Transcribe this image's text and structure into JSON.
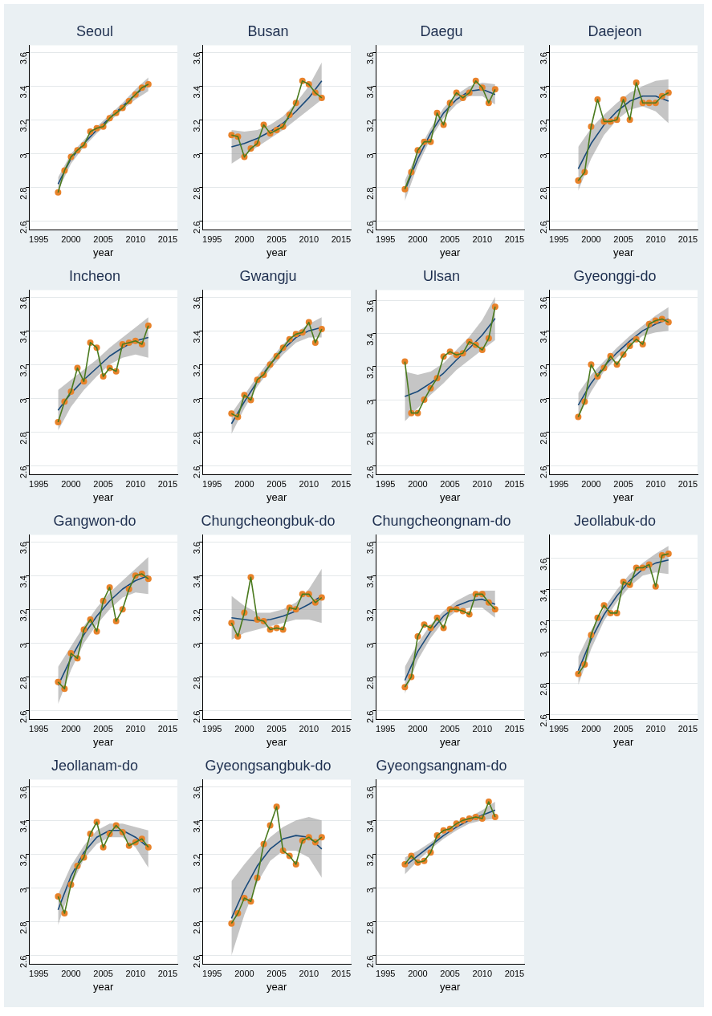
{
  "chart_data": [
    {
      "type": "scatter",
      "title": "Seoul",
      "xlabel": "year",
      "x": [
        1998,
        1999,
        2000,
        2001,
        2002,
        2003,
        2004,
        2005,
        2006,
        2007,
        2008,
        2009,
        2010,
        2011,
        2012
      ],
      "xlim": [
        1993.5,
        2016.5
      ],
      "xticks": [
        1995,
        2000,
        2005,
        2010,
        2015
      ],
      "ylim": [
        2.55,
        3.64
      ],
      "yticks": [
        2.6,
        2.8,
        3,
        3.2,
        3.4,
        3.6
      ],
      "grid": "y",
      "series": [
        {
          "type": "line",
          "color": "#4a7a1e",
          "marker": "none",
          "values": [
            2.77,
            2.9,
            2.98,
            3.02,
            3.05,
            3.13,
            3.15,
            3.16,
            3.21,
            3.24,
            3.27,
            3.31,
            3.35,
            3.39,
            3.41
          ]
        },
        {
          "type": "scatter",
          "color": "#e8822a",
          "marker": "circle",
          "values": [
            2.77,
            2.9,
            2.98,
            3.02,
            3.05,
            3.13,
            3.15,
            3.16,
            3.21,
            3.24,
            3.27,
            3.31,
            3.35,
            3.39,
            3.41
          ]
        },
        {
          "type": "line",
          "color": "#1a4a7a",
          "marker": "none",
          "x": [
            1998,
            2000,
            2002,
            2004,
            2006,
            2008,
            2010,
            2012
          ],
          "values": [
            2.82,
            2.97,
            3.06,
            3.14,
            3.21,
            3.28,
            3.35,
            3.41
          ],
          "lower": [
            2.78,
            2.94,
            3.04,
            3.12,
            3.19,
            3.26,
            3.32,
            3.37
          ],
          "upper": [
            2.86,
            3.0,
            3.08,
            3.16,
            3.23,
            3.3,
            3.38,
            3.45
          ]
        }
      ]
    },
    {
      "type": "scatter",
      "title": "Busan",
      "xlabel": "year",
      "x": [
        1998,
        1999,
        2000,
        2001,
        2002,
        2003,
        2004,
        2005,
        2006,
        2007,
        2008,
        2009,
        2010,
        2011,
        2012
      ],
      "xlim": [
        1993.5,
        2016.5
      ],
      "xticks": [
        1995,
        2000,
        2005,
        2010,
        2015
      ],
      "ylim": [
        2.55,
        3.64
      ],
      "yticks": [
        2.6,
        2.8,
        3,
        3.2,
        3.4,
        3.6
      ],
      "grid": "y",
      "series": [
        {
          "type": "line",
          "color": "#4a7a1e",
          "marker": "none",
          "values": [
            3.11,
            3.1,
            2.98,
            3.03,
            3.06,
            3.17,
            3.12,
            3.14,
            3.16,
            3.23,
            3.3,
            3.43,
            3.41,
            3.36,
            3.33
          ]
        },
        {
          "type": "scatter",
          "color": "#e8822a",
          "marker": "circle",
          "values": [
            3.11,
            3.1,
            2.98,
            3.03,
            3.06,
            3.17,
            3.12,
            3.14,
            3.16,
            3.23,
            3.3,
            3.43,
            3.41,
            3.36,
            3.33
          ]
        },
        {
          "type": "line",
          "color": "#1a4a7a",
          "marker": "none",
          "x": [
            1998,
            2000,
            2002,
            2004,
            2006,
            2008,
            2010,
            2012
          ],
          "values": [
            3.04,
            3.06,
            3.09,
            3.13,
            3.18,
            3.25,
            3.33,
            3.43
          ],
          "lower": [
            2.94,
            2.99,
            3.04,
            3.09,
            3.14,
            3.2,
            3.26,
            3.32
          ],
          "upper": [
            3.14,
            3.13,
            3.14,
            3.17,
            3.22,
            3.3,
            3.4,
            3.54
          ]
        }
      ]
    },
    {
      "type": "scatter",
      "title": "Daegu",
      "xlabel": "year",
      "x": [
        1998,
        1999,
        2000,
        2001,
        2002,
        2003,
        2004,
        2005,
        2006,
        2007,
        2008,
        2009,
        2010,
        2011,
        2012
      ],
      "xlim": [
        1993.5,
        2016.5
      ],
      "xticks": [
        1995,
        2000,
        2005,
        2010,
        2015
      ],
      "ylim": [
        2.55,
        3.64
      ],
      "yticks": [
        2.6,
        2.8,
        3,
        3.2,
        3.4,
        3.6
      ],
      "grid": "y",
      "series": [
        {
          "type": "line",
          "color": "#4a7a1e",
          "marker": "none",
          "values": [
            2.79,
            2.89,
            3.02,
            3.07,
            3.07,
            3.24,
            3.17,
            3.3,
            3.36,
            3.33,
            3.36,
            3.43,
            3.39,
            3.3,
            3.38
          ]
        },
        {
          "type": "scatter",
          "color": "#e8822a",
          "marker": "circle",
          "values": [
            2.79,
            2.89,
            3.02,
            3.07,
            3.07,
            3.24,
            3.17,
            3.3,
            3.36,
            3.33,
            3.36,
            3.43,
            3.39,
            3.3,
            3.38
          ]
        },
        {
          "type": "line",
          "color": "#1a4a7a",
          "marker": "none",
          "x": [
            1998,
            2000,
            2002,
            2004,
            2006,
            2008,
            2010,
            2012
          ],
          "values": [
            2.78,
            2.97,
            3.12,
            3.24,
            3.32,
            3.37,
            3.38,
            3.35
          ],
          "lower": [
            2.72,
            2.93,
            3.09,
            3.21,
            3.29,
            3.34,
            3.34,
            3.29
          ],
          "upper": [
            2.84,
            3.01,
            3.15,
            3.27,
            3.35,
            3.4,
            3.42,
            3.41
          ]
        }
      ]
    },
    {
      "type": "scatter",
      "title": "Daejeon",
      "xlabel": "year",
      "x": [
        1998,
        1999,
        2000,
        2001,
        2002,
        2003,
        2004,
        2005,
        2006,
        2007,
        2008,
        2009,
        2010,
        2011,
        2012
      ],
      "xlim": [
        1993.5,
        2016.5
      ],
      "xticks": [
        1995,
        2000,
        2005,
        2010,
        2015
      ],
      "ylim": [
        2.55,
        3.64
      ],
      "yticks": [
        2.6,
        2.8,
        3,
        3.2,
        3.4,
        3.6
      ],
      "grid": "y",
      "series": [
        {
          "type": "line",
          "color": "#4a7a1e",
          "marker": "none",
          "values": [
            2.84,
            2.89,
            3.16,
            3.32,
            3.19,
            3.19,
            3.2,
            3.32,
            3.2,
            3.42,
            3.3,
            3.3,
            3.3,
            3.34,
            3.36
          ]
        },
        {
          "type": "scatter",
          "color": "#e8822a",
          "marker": "circle",
          "values": [
            2.84,
            2.89,
            3.16,
            3.32,
            3.19,
            3.19,
            3.2,
            3.32,
            3.2,
            3.42,
            3.3,
            3.3,
            3.3,
            3.34,
            3.36
          ]
        },
        {
          "type": "line",
          "color": "#1a4a7a",
          "marker": "none",
          "x": [
            1998,
            2000,
            2002,
            2004,
            2006,
            2008,
            2010,
            2012
          ],
          "values": [
            2.91,
            3.06,
            3.17,
            3.25,
            3.31,
            3.34,
            3.34,
            3.31
          ],
          "lower": [
            2.78,
            2.97,
            3.11,
            3.2,
            3.26,
            3.28,
            3.25,
            3.18
          ],
          "upper": [
            3.04,
            3.15,
            3.23,
            3.3,
            3.36,
            3.4,
            3.43,
            3.44
          ]
        }
      ]
    },
    {
      "type": "scatter",
      "title": "Incheon",
      "xlabel": "year",
      "x": [
        1998,
        1999,
        2000,
        2001,
        2002,
        2003,
        2004,
        2005,
        2006,
        2007,
        2008,
        2009,
        2010,
        2011,
        2012
      ],
      "xlim": [
        1993.5,
        2016.5
      ],
      "xticks": [
        1995,
        2000,
        2005,
        2010,
        2015
      ],
      "ylim": [
        2.55,
        3.64
      ],
      "yticks": [
        2.6,
        2.8,
        3,
        3.2,
        3.4,
        3.6
      ],
      "grid": "y",
      "series": [
        {
          "type": "line",
          "color": "#4a7a1e",
          "marker": "none",
          "values": [
            2.86,
            2.98,
            3.04,
            3.18,
            3.1,
            3.33,
            3.3,
            3.13,
            3.18,
            3.16,
            3.32,
            3.33,
            3.34,
            3.32,
            3.43
          ]
        },
        {
          "type": "scatter",
          "color": "#e8822a",
          "marker": "circle",
          "values": [
            2.86,
            2.98,
            3.04,
            3.18,
            3.1,
            3.33,
            3.3,
            3.13,
            3.18,
            3.16,
            3.32,
            3.33,
            3.34,
            3.32,
            3.43
          ]
        },
        {
          "type": "line",
          "color": "#1a4a7a",
          "marker": "none",
          "x": [
            1998,
            2000,
            2002,
            2004,
            2006,
            2008,
            2010,
            2012
          ],
          "values": [
            2.93,
            3.03,
            3.11,
            3.18,
            3.25,
            3.3,
            3.34,
            3.36
          ],
          "lower": [
            2.81,
            2.95,
            3.05,
            3.13,
            3.2,
            3.24,
            3.26,
            3.24
          ],
          "upper": [
            3.05,
            3.11,
            3.17,
            3.23,
            3.3,
            3.36,
            3.42,
            3.48
          ]
        }
      ]
    },
    {
      "type": "scatter",
      "title": "Gwangju",
      "xlabel": "year",
      "x": [
        1998,
        1999,
        2000,
        2001,
        2002,
        2003,
        2004,
        2005,
        2006,
        2007,
        2008,
        2009,
        2010,
        2011,
        2012
      ],
      "xlim": [
        1993.5,
        2016.5
      ],
      "xticks": [
        1995,
        2000,
        2005,
        2010,
        2015
      ],
      "ylim": [
        2.55,
        3.64
      ],
      "yticks": [
        2.6,
        2.8,
        3,
        3.2,
        3.4,
        3.6
      ],
      "grid": "y",
      "series": [
        {
          "type": "line",
          "color": "#4a7a1e",
          "marker": "none",
          "values": [
            2.91,
            2.89,
            3.02,
            2.99,
            3.11,
            3.14,
            3.2,
            3.25,
            3.3,
            3.35,
            3.38,
            3.39,
            3.45,
            3.33,
            3.41
          ]
        },
        {
          "type": "scatter",
          "color": "#e8822a",
          "marker": "circle",
          "values": [
            2.91,
            2.89,
            3.02,
            2.99,
            3.11,
            3.14,
            3.2,
            3.25,
            3.3,
            3.35,
            3.38,
            3.39,
            3.45,
            3.33,
            3.41
          ]
        },
        {
          "type": "line",
          "color": "#1a4a7a",
          "marker": "none",
          "x": [
            1998,
            2000,
            2002,
            2004,
            2006,
            2008,
            2010,
            2012
          ],
          "values": [
            2.85,
            2.98,
            3.1,
            3.2,
            3.29,
            3.36,
            3.4,
            3.42
          ],
          "lower": [
            2.79,
            2.94,
            3.07,
            3.17,
            3.26,
            3.33,
            3.36,
            3.36
          ],
          "upper": [
            2.91,
            3.02,
            3.13,
            3.23,
            3.32,
            3.39,
            3.44,
            3.48
          ]
        }
      ]
    },
    {
      "type": "scatter",
      "title": "Ulsan",
      "xlabel": "year",
      "x": [
        1998,
        1999,
        2000,
        2001,
        2002,
        2003,
        2004,
        2005,
        2006,
        2007,
        2008,
        2009,
        2010,
        2011,
        2012
      ],
      "xlim": [
        1993.5,
        2016.5
      ],
      "xticks": [
        1995,
        2000,
        2005,
        2010,
        2015
      ],
      "ylim": [
        2.55,
        3.66
      ],
      "yticks": [
        2.6,
        2.8,
        3,
        3.2,
        3.4,
        3.6
      ],
      "grid": "y",
      "series": [
        {
          "type": "line",
          "color": "#4a7a1e",
          "marker": "none",
          "values": [
            3.23,
            2.92,
            2.92,
            3.0,
            3.07,
            3.13,
            3.26,
            3.29,
            3.27,
            3.28,
            3.35,
            3.33,
            3.3,
            3.37,
            3.56
          ]
        },
        {
          "type": "scatter",
          "color": "#e8822a",
          "marker": "circle",
          "values": [
            3.23,
            2.92,
            2.92,
            3.0,
            3.07,
            3.13,
            3.26,
            3.29,
            3.27,
            3.28,
            3.35,
            3.33,
            3.3,
            3.37,
            3.56
          ]
        },
        {
          "type": "line",
          "color": "#1a4a7a",
          "marker": "none",
          "x": [
            1998,
            2000,
            2002,
            2004,
            2006,
            2008,
            2010,
            2012
          ],
          "values": [
            3.02,
            3.05,
            3.1,
            3.16,
            3.24,
            3.31,
            3.39,
            3.49
          ],
          "lower": [
            2.87,
            2.95,
            3.03,
            3.1,
            3.18,
            3.24,
            3.3,
            3.36
          ],
          "upper": [
            3.17,
            3.15,
            3.17,
            3.22,
            3.3,
            3.38,
            3.48,
            3.62
          ]
        }
      ]
    },
    {
      "type": "scatter",
      "title": "Gyeonggi-do",
      "xlabel": "year",
      "x": [
        1998,
        1999,
        2000,
        2001,
        2002,
        2003,
        2004,
        2005,
        2006,
        2007,
        2008,
        2009,
        2010,
        2011,
        2012
      ],
      "xlim": [
        1993.5,
        2016.5
      ],
      "xticks": [
        1995,
        2000,
        2005,
        2010,
        2015
      ],
      "ylim": [
        2.55,
        3.64
      ],
      "yticks": [
        2.6,
        2.8,
        3,
        3.2,
        3.4,
        3.6
      ],
      "grid": "y",
      "series": [
        {
          "type": "line",
          "color": "#4a7a1e",
          "marker": "none",
          "values": [
            2.89,
            2.98,
            3.2,
            3.13,
            3.18,
            3.25,
            3.2,
            3.26,
            3.31,
            3.35,
            3.32,
            3.44,
            3.46,
            3.47,
            3.45
          ]
        },
        {
          "type": "scatter",
          "color": "#e8822a",
          "marker": "circle",
          "values": [
            2.89,
            2.98,
            3.2,
            3.13,
            3.18,
            3.25,
            3.2,
            3.26,
            3.31,
            3.35,
            3.32,
            3.44,
            3.46,
            3.47,
            3.45
          ]
        },
        {
          "type": "line",
          "color": "#1a4a7a",
          "marker": "none",
          "x": [
            1998,
            2000,
            2002,
            2004,
            2006,
            2008,
            2010,
            2012
          ],
          "values": [
            2.96,
            3.09,
            3.19,
            3.27,
            3.34,
            3.4,
            3.44,
            3.47
          ],
          "lower": [
            2.89,
            3.04,
            3.16,
            3.24,
            3.31,
            3.37,
            3.39,
            3.4
          ],
          "upper": [
            3.03,
            3.14,
            3.22,
            3.3,
            3.37,
            3.43,
            3.49,
            3.54
          ]
        }
      ]
    },
    {
      "type": "scatter",
      "title": "Gangwon-do",
      "xlabel": "year",
      "x": [
        1998,
        1999,
        2000,
        2001,
        2002,
        2003,
        2004,
        2005,
        2006,
        2007,
        2008,
        2009,
        2010,
        2011,
        2012
      ],
      "xlim": [
        1993.5,
        2016.5
      ],
      "xticks": [
        1995,
        2000,
        2005,
        2010,
        2015
      ],
      "ylim": [
        2.55,
        3.64
      ],
      "yticks": [
        2.6,
        2.8,
        3,
        3.2,
        3.4,
        3.6
      ],
      "grid": "y",
      "series": [
        {
          "type": "line",
          "color": "#4a7a1e",
          "marker": "none",
          "values": [
            2.77,
            2.73,
            2.94,
            2.91,
            3.08,
            3.14,
            3.07,
            3.25,
            3.33,
            3.13,
            3.2,
            3.32,
            3.4,
            3.41,
            3.38
          ]
        },
        {
          "type": "scatter",
          "color": "#e8822a",
          "marker": "circle",
          "values": [
            2.77,
            2.73,
            2.94,
            2.91,
            3.08,
            3.14,
            3.07,
            3.25,
            3.33,
            3.13,
            3.2,
            3.32,
            3.4,
            3.41,
            3.38
          ]
        },
        {
          "type": "line",
          "color": "#1a4a7a",
          "marker": "none",
          "x": [
            1998,
            2000,
            2002,
            2004,
            2006,
            2008,
            2010,
            2012
          ],
          "values": [
            2.75,
            2.91,
            3.05,
            3.16,
            3.25,
            3.32,
            3.37,
            3.4
          ],
          "lower": [
            2.64,
            2.84,
            3.0,
            3.11,
            3.2,
            3.27,
            3.3,
            3.29
          ],
          "upper": [
            2.86,
            2.98,
            3.1,
            3.21,
            3.3,
            3.37,
            3.44,
            3.51
          ]
        }
      ]
    },
    {
      "type": "scatter",
      "title": "Chungcheongbuk-do",
      "xlabel": "year",
      "x": [
        1998,
        1999,
        2000,
        2001,
        2002,
        2003,
        2004,
        2005,
        2006,
        2007,
        2008,
        2009,
        2010,
        2011,
        2012
      ],
      "xlim": [
        1993.5,
        2016.5
      ],
      "xticks": [
        1995,
        2000,
        2005,
        2010,
        2015
      ],
      "ylim": [
        2.55,
        3.64
      ],
      "yticks": [
        2.6,
        2.8,
        3,
        3.2,
        3.4,
        3.6
      ],
      "grid": "y",
      "series": [
        {
          "type": "line",
          "color": "#4a7a1e",
          "marker": "none",
          "values": [
            3.12,
            3.04,
            3.18,
            3.39,
            3.14,
            3.13,
            3.08,
            3.09,
            3.08,
            3.21,
            3.2,
            3.29,
            3.29,
            3.24,
            3.27
          ]
        },
        {
          "type": "scatter",
          "color": "#e8822a",
          "marker": "circle",
          "values": [
            3.12,
            3.04,
            3.18,
            3.39,
            3.14,
            3.13,
            3.08,
            3.09,
            3.08,
            3.21,
            3.2,
            3.29,
            3.29,
            3.24,
            3.27
          ]
        },
        {
          "type": "line",
          "color": "#1a4a7a",
          "marker": "none",
          "x": [
            1998,
            2000,
            2002,
            2004,
            2006,
            2008,
            2010,
            2012
          ],
          "values": [
            3.15,
            3.14,
            3.13,
            3.14,
            3.16,
            3.19,
            3.23,
            3.28
          ],
          "lower": [
            3.02,
            3.06,
            3.08,
            3.1,
            3.12,
            3.14,
            3.14,
            3.12
          ],
          "upper": [
            3.28,
            3.22,
            3.18,
            3.18,
            3.2,
            3.24,
            3.32,
            3.44
          ]
        }
      ]
    },
    {
      "type": "scatter",
      "title": "Chungcheongnam-do",
      "xlabel": "year",
      "x": [
        1998,
        1999,
        2000,
        2001,
        2002,
        2003,
        2004,
        2005,
        2006,
        2007,
        2008,
        2009,
        2010,
        2011,
        2012
      ],
      "xlim": [
        1993.5,
        2016.5
      ],
      "xticks": [
        1995,
        2000,
        2005,
        2010,
        2015
      ],
      "ylim": [
        2.55,
        3.64
      ],
      "yticks": [
        2.6,
        2.8,
        3,
        3.2,
        3.4,
        3.6
      ],
      "grid": "y",
      "series": [
        {
          "type": "line",
          "color": "#4a7a1e",
          "marker": "none",
          "values": [
            2.74,
            2.8,
            3.04,
            3.11,
            3.09,
            3.15,
            3.09,
            3.2,
            3.2,
            3.19,
            3.17,
            3.29,
            3.29,
            3.24,
            3.2
          ]
        },
        {
          "type": "scatter",
          "color": "#e8822a",
          "marker": "circle",
          "values": [
            2.74,
            2.8,
            3.04,
            3.11,
            3.09,
            3.15,
            3.09,
            3.2,
            3.2,
            3.19,
            3.17,
            3.29,
            3.29,
            3.24,
            3.2
          ]
        },
        {
          "type": "line",
          "color": "#1a4a7a",
          "marker": "none",
          "x": [
            1998,
            2000,
            2002,
            2004,
            2006,
            2008,
            2010,
            2012
          ],
          "values": [
            2.78,
            2.95,
            3.07,
            3.16,
            3.22,
            3.25,
            3.26,
            3.23
          ],
          "lower": [
            2.7,
            2.9,
            3.03,
            3.13,
            3.19,
            3.21,
            3.21,
            3.15
          ],
          "upper": [
            2.86,
            3.0,
            3.11,
            3.19,
            3.25,
            3.29,
            3.31,
            3.31
          ]
        }
      ]
    },
    {
      "type": "scatter",
      "title": "Jeollabuk-do",
      "xlabel": "year",
      "x": [
        1998,
        1999,
        2000,
        2001,
        2002,
        2003,
        2004,
        2005,
        2006,
        2007,
        2008,
        2009,
        2010,
        2011,
        2012
      ],
      "xlim": [
        1993.5,
        2016.5
      ],
      "xticks": [
        1995,
        2000,
        2005,
        2010,
        2015
      ],
      "ylim": [
        2.57,
        3.75
      ],
      "yticks": [
        2.6,
        2.8,
        3,
        3.2,
        3.4,
        3.6
      ],
      "grid": "y",
      "series": [
        {
          "type": "line",
          "color": "#4a7a1e",
          "marker": "none",
          "values": [
            2.86,
            2.92,
            3.11,
            3.22,
            3.3,
            3.25,
            3.25,
            3.45,
            3.43,
            3.54,
            3.54,
            3.56,
            3.42,
            3.62,
            3.63
          ]
        },
        {
          "type": "scatter",
          "color": "#e8822a",
          "marker": "circle",
          "values": [
            2.86,
            2.92,
            3.11,
            3.22,
            3.3,
            3.25,
            3.25,
            3.45,
            3.43,
            3.54,
            3.54,
            3.56,
            3.42,
            3.62,
            3.63
          ]
        },
        {
          "type": "line",
          "color": "#1a4a7a",
          "marker": "none",
          "x": [
            1998,
            2000,
            2002,
            2004,
            2006,
            2008,
            2010,
            2012
          ],
          "values": [
            2.88,
            3.08,
            3.24,
            3.36,
            3.46,
            3.53,
            3.57,
            3.59
          ],
          "lower": [
            2.79,
            3.02,
            3.2,
            3.32,
            3.42,
            3.49,
            3.51,
            3.5
          ],
          "upper": [
            2.97,
            3.14,
            3.28,
            3.4,
            3.5,
            3.57,
            3.63,
            3.68
          ]
        }
      ]
    },
    {
      "type": "scatter",
      "title": "Jeollanam-do",
      "xlabel": "year",
      "x": [
        1998,
        1999,
        2000,
        2001,
        2002,
        2003,
        2004,
        2005,
        2006,
        2007,
        2008,
        2009,
        2010,
        2011,
        2012
      ],
      "xlim": [
        1993.5,
        2016.5
      ],
      "xticks": [
        1995,
        2000,
        2005,
        2010,
        2015
      ],
      "ylim": [
        2.55,
        3.64
      ],
      "yticks": [
        2.6,
        2.8,
        3,
        3.2,
        3.4,
        3.6
      ],
      "grid": "y",
      "series": [
        {
          "type": "line",
          "color": "#4a7a1e",
          "marker": "none",
          "values": [
            2.95,
            2.85,
            3.02,
            3.13,
            3.18,
            3.32,
            3.39,
            3.24,
            3.32,
            3.37,
            3.33,
            3.25,
            3.27,
            3.29,
            3.24
          ]
        },
        {
          "type": "scatter",
          "color": "#e8822a",
          "marker": "circle",
          "values": [
            2.95,
            2.85,
            3.02,
            3.13,
            3.18,
            3.32,
            3.39,
            3.24,
            3.32,
            3.37,
            3.33,
            3.25,
            3.27,
            3.29,
            3.24
          ]
        },
        {
          "type": "line",
          "color": "#1a4a7a",
          "marker": "none",
          "x": [
            1998,
            2000,
            2002,
            2004,
            2006,
            2008,
            2010,
            2012
          ],
          "values": [
            2.87,
            3.07,
            3.21,
            3.3,
            3.34,
            3.34,
            3.3,
            3.24
          ],
          "lower": [
            2.78,
            3.01,
            3.17,
            3.26,
            3.3,
            3.3,
            3.24,
            3.12
          ],
          "upper": [
            2.96,
            3.13,
            3.25,
            3.34,
            3.38,
            3.38,
            3.36,
            3.34
          ]
        }
      ]
    },
    {
      "type": "scatter",
      "title": "Gyeongsangbuk-do",
      "xlabel": "year",
      "x": [
        1998,
        1999,
        2000,
        2001,
        2002,
        2003,
        2004,
        2005,
        2006,
        2007,
        2008,
        2009,
        2010,
        2011,
        2012
      ],
      "xlim": [
        1993.5,
        2016.5
      ],
      "xticks": [
        1995,
        2000,
        2005,
        2010,
        2015
      ],
      "ylim": [
        2.55,
        3.64
      ],
      "yticks": [
        2.6,
        2.8,
        3,
        3.2,
        3.4,
        3.6
      ],
      "grid": "y",
      "series": [
        {
          "type": "line",
          "color": "#4a7a1e",
          "marker": "none",
          "values": [
            2.79,
            2.85,
            2.94,
            2.92,
            3.06,
            3.26,
            3.37,
            3.48,
            3.22,
            3.19,
            3.14,
            3.28,
            3.3,
            3.27,
            3.3
          ]
        },
        {
          "type": "scatter",
          "color": "#e8822a",
          "marker": "circle",
          "values": [
            2.79,
            2.85,
            2.94,
            2.92,
            3.06,
            3.26,
            3.37,
            3.48,
            3.22,
            3.19,
            3.14,
            3.28,
            3.3,
            3.27,
            3.3
          ]
        },
        {
          "type": "line",
          "color": "#1a4a7a",
          "marker": "none",
          "x": [
            1998,
            2000,
            2002,
            2004,
            2006,
            2008,
            2010,
            2012
          ],
          "values": [
            2.82,
            2.99,
            3.13,
            3.23,
            3.29,
            3.31,
            3.3,
            3.23
          ],
          "lower": [
            2.6,
            2.84,
            3.03,
            3.16,
            3.22,
            3.22,
            3.18,
            3.06
          ],
          "upper": [
            3.04,
            3.14,
            3.23,
            3.3,
            3.36,
            3.4,
            3.42,
            3.4
          ]
        }
      ]
    },
    {
      "type": "scatter",
      "title": "Gyeongsangnam-do",
      "xlabel": "year",
      "x": [
        1998,
        1999,
        2000,
        2001,
        2002,
        2003,
        2004,
        2005,
        2006,
        2007,
        2008,
        2009,
        2010,
        2011,
        2012
      ],
      "xlim": [
        1993.5,
        2016.5
      ],
      "xticks": [
        1995,
        2000,
        2005,
        2010,
        2015
      ],
      "ylim": [
        2.55,
        3.64
      ],
      "yticks": [
        2.6,
        2.8,
        3,
        3.2,
        3.4,
        3.6
      ],
      "grid": "y",
      "series": [
        {
          "type": "line",
          "color": "#4a7a1e",
          "marker": "none",
          "values": [
            3.14,
            3.19,
            3.15,
            3.16,
            3.21,
            3.31,
            3.34,
            3.35,
            3.38,
            3.4,
            3.41,
            3.42,
            3.41,
            3.51,
            3.42
          ]
        },
        {
          "type": "scatter",
          "color": "#e8822a",
          "marker": "circle",
          "values": [
            3.14,
            3.19,
            3.15,
            3.16,
            3.21,
            3.31,
            3.34,
            3.35,
            3.38,
            3.4,
            3.41,
            3.42,
            3.41,
            3.51,
            3.42
          ]
        },
        {
          "type": "line",
          "color": "#1a4a7a",
          "marker": "none",
          "x": [
            1998,
            2000,
            2002,
            2004,
            2006,
            2008,
            2010,
            2012
          ],
          "values": [
            3.13,
            3.19,
            3.25,
            3.31,
            3.36,
            3.4,
            3.43,
            3.46
          ],
          "lower": [
            3.08,
            3.16,
            3.23,
            3.29,
            3.34,
            3.38,
            3.4,
            3.41
          ],
          "upper": [
            3.18,
            3.22,
            3.27,
            3.33,
            3.38,
            3.42,
            3.46,
            3.51
          ]
        }
      ]
    }
  ]
}
